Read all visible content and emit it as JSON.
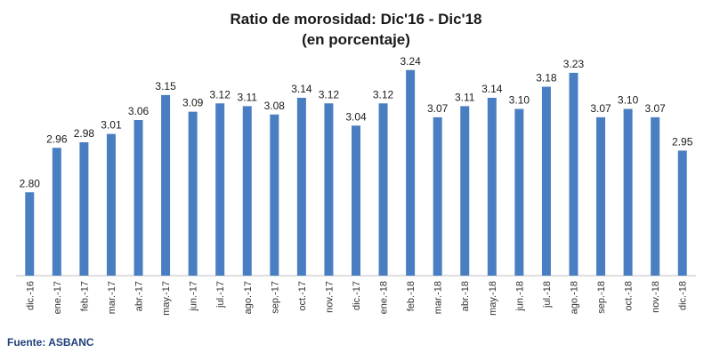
{
  "chart_data": {
    "type": "bar",
    "title": "Ratio de morosidad: Dic'16 - Dic'18",
    "subtitle": "(en porcentaje)",
    "xlabel": "",
    "ylabel": "",
    "ylim": [
      2.5,
      3.3
    ],
    "grid": false,
    "legend": "none",
    "bar_color": "#4a7ec2",
    "categories": [
      "dic.-16",
      "ene.-17",
      "feb.-17",
      "mar.-17",
      "abr.-17",
      "may.-17",
      "jun.-17",
      "jul.-17",
      "ago.-17",
      "sep.-17",
      "oct.-17",
      "nov.-17",
      "dic.-17",
      "ene.-18",
      "feb.-18",
      "mar.-18",
      "abr.-18",
      "may.-18",
      "jun.-18",
      "jul.-18",
      "ago.-18",
      "sep.-18",
      "oct.-18",
      "nov.-18",
      "dic.-18"
    ],
    "values": [
      2.8,
      2.96,
      2.98,
      3.01,
      3.06,
      3.15,
      3.09,
      3.12,
      3.11,
      3.08,
      3.14,
      3.12,
      3.04,
      3.12,
      3.24,
      3.07,
      3.11,
      3.14,
      3.1,
      3.18,
      3.23,
      3.07,
      3.1,
      3.07,
      2.95
    ],
    "value_labels": [
      "2.80",
      "2.96",
      "2.98",
      "3.01",
      "3.06",
      "3.15",
      "3.09",
      "3.12",
      "3.11",
      "3.08",
      "3.14",
      "3.12",
      "3.04",
      "3.12",
      "3.24",
      "3.07",
      "3.11",
      "3.14",
      "3.10",
      "3.18",
      "3.23",
      "3.07",
      "3.10",
      "3.07",
      "2.95"
    ],
    "source": "Fuente: ASBANC"
  }
}
